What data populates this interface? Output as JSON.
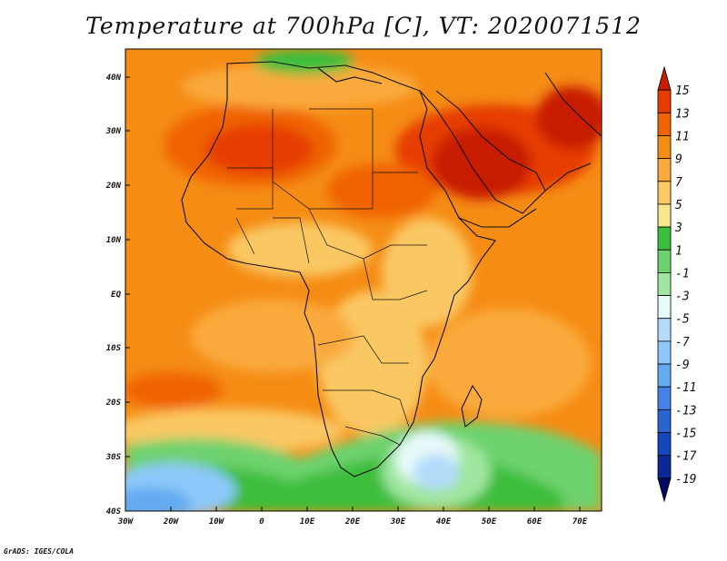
{
  "title": "Temperature at 700hPa [C], VT: 2020071512",
  "credit": "GrADS: IGES/COLA",
  "map": {
    "lat_labels": [
      "40N",
      "30N",
      "20N",
      "10N",
      "EQ",
      "10S",
      "20S",
      "30S",
      "40S"
    ],
    "lon_labels": [
      "30W",
      "20W",
      "10W",
      "0",
      "10E",
      "20E",
      "30E",
      "40E",
      "50E",
      "60E",
      "70E"
    ]
  },
  "colorbar": {
    "labels": [
      "15",
      "13",
      "11",
      "9",
      "7",
      "5",
      "3",
      "1",
      "-1",
      "-3",
      "-5",
      "-7",
      "-9",
      "-11",
      "-13",
      "-15",
      "-17",
      "-19"
    ],
    "colors": [
      "#c81e00",
      "#e63c00",
      "#f06400",
      "#f58c14",
      "#faaa3c",
      "#fac864",
      "#fae68c",
      "#3cbe3c",
      "#6ed26e",
      "#a0e6a0",
      "#e6fafa",
      "#b4dcfa",
      "#8cc8fa",
      "#64aaf0",
      "#4682e6",
      "#2864d2",
      "#1446be",
      "#0a2896",
      "#000a64"
    ]
  }
}
